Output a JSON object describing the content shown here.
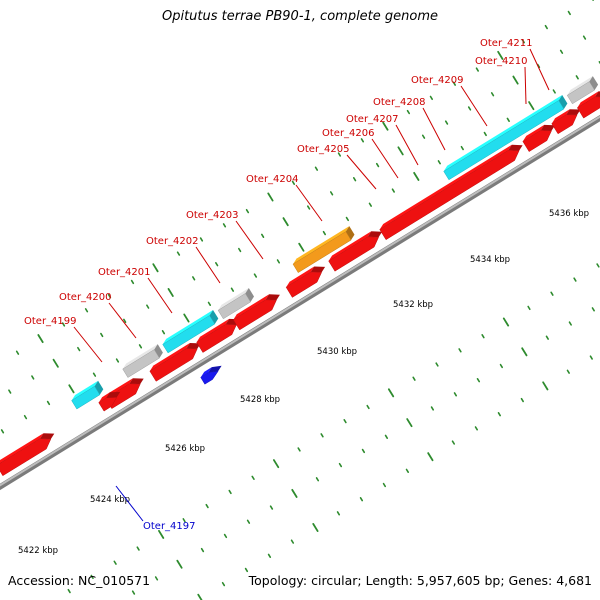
{
  "title": "Opitutus terrae PB90-1, complete genome",
  "accession": "Accession: NC_010571",
  "summary": "Topology: circular; Length: 5,957,605 bp; Genes: 4,681",
  "colors": {
    "backbone": "#9a9a9a",
    "ticks": "#2e8b2e",
    "label_top": "#cc0000",
    "label_bottom": "#0000cc",
    "red": "#ee1111",
    "cyan": "#22ddee",
    "gray": "#c4c4c4",
    "orange": "#f39a1c",
    "green": "#33bb33",
    "pink": "#ee8a8a",
    "blue": "#1a1aee",
    "yellow": "#e8c030"
  },
  "scale_labels": [
    {
      "kbp": 5422,
      "text": "5422 kbp"
    },
    {
      "kbp": 5424,
      "text": "5424 kbp"
    },
    {
      "kbp": 5426,
      "text": "5426 kbp"
    },
    {
      "kbp": 5428,
      "text": "5428 kbp"
    },
    {
      "kbp": 5430,
      "text": "5430 kbp"
    },
    {
      "kbp": 5432,
      "text": "5432 kbp"
    },
    {
      "kbp": 5434,
      "text": "5434 kbp"
    },
    {
      "kbp": 5436,
      "text": "5436 kbp"
    }
  ],
  "gene_labels": [
    {
      "text": "Oter_4199",
      "strand": "top"
    },
    {
      "text": "Oter_4200",
      "strand": "top"
    },
    {
      "text": "Oter_4201",
      "strand": "top"
    },
    {
      "text": "Oter_4202",
      "strand": "top"
    },
    {
      "text": "Oter_4203",
      "strand": "top"
    },
    {
      "text": "Oter_4204",
      "strand": "top"
    },
    {
      "text": "Oter_4205",
      "strand": "top"
    },
    {
      "text": "Oter_4206",
      "strand": "top"
    },
    {
      "text": "Oter_4207",
      "strand": "top"
    },
    {
      "text": "Oter_4208",
      "strand": "top"
    },
    {
      "text": "Oter_4209",
      "strand": "top"
    },
    {
      "text": "Oter_4210",
      "strand": "top"
    },
    {
      "text": "Oter_4211",
      "strand": "top"
    },
    {
      "text": "Oter_4197",
      "strand": "bottom"
    }
  ]
}
